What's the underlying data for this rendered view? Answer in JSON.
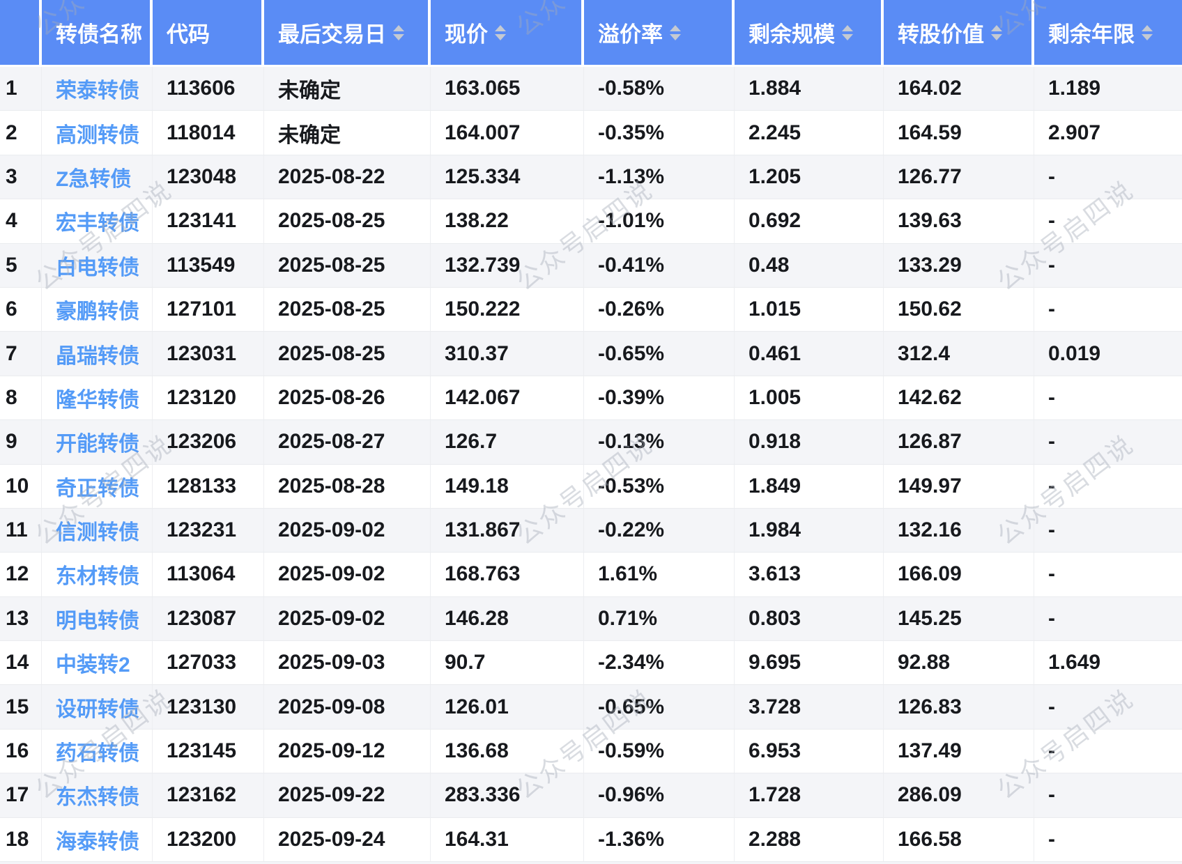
{
  "watermark": {
    "text": "公众号启四说"
  },
  "colors": {
    "header_bg": "#5A8CF5",
    "link": "#549BF7",
    "row_alt_bg": "#F4F5F8",
    "border": "#EAECEF",
    "text": "#17191D",
    "sort_icon": "#C5CAD2",
    "watermark": "#B0B6C0"
  },
  "table": {
    "columns": [
      {
        "key": "index",
        "label": "",
        "sortable": false
      },
      {
        "key": "name",
        "label": "转债名称",
        "sortable": false
      },
      {
        "key": "code",
        "label": "代码",
        "sortable": false
      },
      {
        "key": "last_trade_date",
        "label": "最后交易日",
        "sortable": true
      },
      {
        "key": "price",
        "label": "现价",
        "sortable": true
      },
      {
        "key": "premium_rate",
        "label": "溢价率",
        "sortable": true
      },
      {
        "key": "remaining_size",
        "label": "剩余规模",
        "sortable": true
      },
      {
        "key": "conversion_value",
        "label": "转股价值",
        "sortable": true
      },
      {
        "key": "remaining_years",
        "label": "剩余年限",
        "sortable": true
      }
    ],
    "rows": [
      [
        "1",
        "荣泰转债",
        "113606",
        "未确定",
        "163.065",
        "-0.58%",
        "1.884",
        "164.02",
        "1.189"
      ],
      [
        "2",
        "高测转债",
        "118014",
        "未确定",
        "164.007",
        "-0.35%",
        "2.245",
        "164.59",
        "2.907"
      ],
      [
        "3",
        "Z急转债",
        "123048",
        "2025-08-22",
        "125.334",
        "-1.13%",
        "1.205",
        "126.77",
        "-"
      ],
      [
        "4",
        "宏丰转债",
        "123141",
        "2025-08-25",
        "138.22",
        "-1.01%",
        "0.692",
        "139.63",
        "-"
      ],
      [
        "5",
        "白电转债",
        "113549",
        "2025-08-25",
        "132.739",
        "-0.41%",
        "0.48",
        "133.29",
        "-"
      ],
      [
        "6",
        "豪鹏转债",
        "127101",
        "2025-08-25",
        "150.222",
        "-0.26%",
        "1.015",
        "150.62",
        "-"
      ],
      [
        "7",
        "晶瑞转债",
        "123031",
        "2025-08-25",
        "310.37",
        "-0.65%",
        "0.461",
        "312.4",
        "0.019"
      ],
      [
        "8",
        "隆华转债",
        "123120",
        "2025-08-26",
        "142.067",
        "-0.39%",
        "1.005",
        "142.62",
        "-"
      ],
      [
        "9",
        "开能转债",
        "123206",
        "2025-08-27",
        "126.7",
        "-0.13%",
        "0.918",
        "126.87",
        "-"
      ],
      [
        "10",
        "奇正转债",
        "128133",
        "2025-08-28",
        "149.18",
        "-0.53%",
        "1.849",
        "149.97",
        "-"
      ],
      [
        "11",
        "信测转债",
        "123231",
        "2025-09-02",
        "131.867",
        "-0.22%",
        "1.984",
        "132.16",
        "-"
      ],
      [
        "12",
        "东材转债",
        "113064",
        "2025-09-02",
        "168.763",
        "1.61%",
        "3.613",
        "166.09",
        "-"
      ],
      [
        "13",
        "明电转债",
        "123087",
        "2025-09-02",
        "146.28",
        "0.71%",
        "0.803",
        "145.25",
        "-"
      ],
      [
        "14",
        "中装转2",
        "127033",
        "2025-09-03",
        "90.7",
        "-2.34%",
        "9.695",
        "92.88",
        "1.649"
      ],
      [
        "15",
        "设研转债",
        "123130",
        "2025-09-08",
        "126.01",
        "-0.65%",
        "3.728",
        "126.83",
        "-"
      ],
      [
        "16",
        "药石转债",
        "123145",
        "2025-09-12",
        "136.68",
        "-0.59%",
        "6.953",
        "137.49",
        "-"
      ],
      [
        "17",
        "东杰转债",
        "123162",
        "2025-09-22",
        "283.336",
        "-0.96%",
        "1.728",
        "286.09",
        "-"
      ],
      [
        "18",
        "海泰转债",
        "123200",
        "2025-09-24",
        "164.31",
        "-1.36%",
        "2.288",
        "166.58",
        "-"
      ]
    ]
  }
}
